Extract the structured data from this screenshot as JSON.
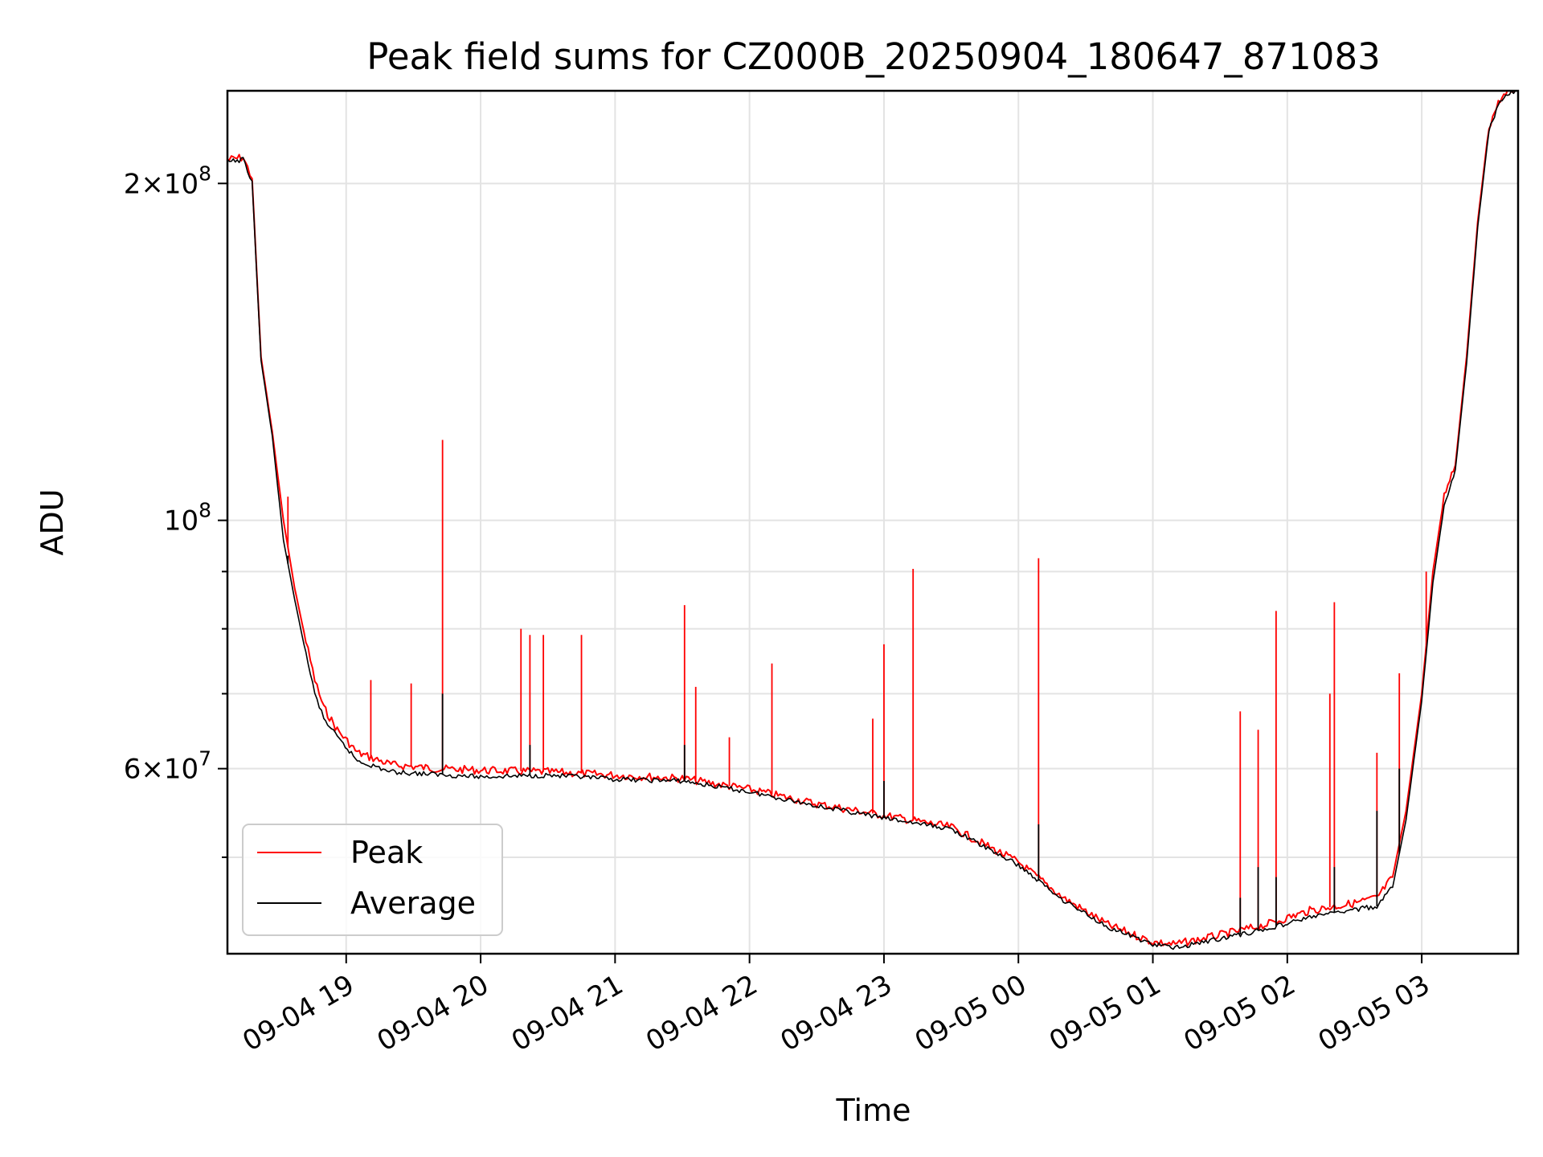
{
  "chart_data": {
    "type": "line",
    "title": "Peak field sums for CZ000B_20250904_180647_871083",
    "xlabel": "Time",
    "ylabel": "ADU",
    "yscale": "log",
    "grid": true,
    "legend_position": "lower-left",
    "xlim": [
      "09-04 18:07",
      "09-05 03:43"
    ],
    "ylim": [
      41000000,
      242000000
    ],
    "x_ticks": [
      {
        "label": "09-04 19",
        "value": "09-04 19:00"
      },
      {
        "label": "09-04 20",
        "value": "09-04 20:00"
      },
      {
        "label": "09-04 21",
        "value": "09-04 21:00"
      },
      {
        "label": "09-04 22",
        "value": "09-04 22:00"
      },
      {
        "label": "09-04 23",
        "value": "09-04 23:00"
      },
      {
        "label": "09-05 00",
        "value": "09-05 00:00"
      },
      {
        "label": "09-05 01",
        "value": "09-05 01:00"
      },
      {
        "label": "09-05 02",
        "value": "09-05 02:00"
      },
      {
        "label": "09-05 03",
        "value": "09-05 03:00"
      }
    ],
    "y_major_ticks": [
      {
        "value": 60000000,
        "base": "6",
        "mul": "×",
        "pow_base": "10",
        "exp": "7"
      },
      {
        "value": 100000000,
        "base": "",
        "mul": "",
        "pow_base": "10",
        "exp": "8"
      },
      {
        "value": 200000000,
        "base": "2",
        "mul": "×",
        "pow_base": "10",
        "exp": "8"
      }
    ],
    "y_minor_ticks": [
      50000000,
      70000000,
      80000000,
      90000000
    ],
    "series": [
      {
        "name": "Peak",
        "color": "#ff0000",
        "x": [
          "09-04 18:07",
          "09-04 18:14",
          "09-04 18:18",
          "09-04 18:22",
          "09-04 18:27",
          "09-04 18:32",
          "09-04 18:37",
          "09-04 18:42",
          "09-04 18:46",
          "09-04 18:50",
          "09-04 18:56",
          "09-04 19:05",
          "09-04 19:20",
          "09-04 19:40",
          "09-04 20:00",
          "09-04 20:30",
          "09-04 21:00",
          "09-04 21:30",
          "09-04 22:00",
          "09-04 22:30",
          "09-04 23:00",
          "09-04 23:30",
          "09-05 00:00",
          "09-05 00:20",
          "09-05 00:40",
          "09-05 01:00",
          "09-05 01:10",
          "09-05 01:30",
          "09-05 01:50",
          "09-05 02:10",
          "09-05 02:30",
          "09-05 02:40",
          "09-05 02:47",
          "09-05 02:53",
          "09-05 03:00",
          "09-05 03:05",
          "09-05 03:10",
          "09-05 03:15",
          "09-05 03:20",
          "09-05 03:25",
          "09-05 03:30",
          "09-05 03:35",
          "09-05 03:40",
          "09-05 03:43"
        ],
        "values": [
          210000000,
          211000000,
          202000000,
          140000000,
          120000000,
          100000000,
          87000000,
          78000000,
          72000000,
          68000000,
          65000000,
          62000000,
          60500000,
          60000000,
          59800000,
          59600000,
          59200000,
          58800000,
          57500000,
          55800000,
          54500000,
          53200000,
          49500000,
          46000000,
          43500000,
          42000000,
          41800000,
          42600000,
          43500000,
          44800000,
          45500000,
          46000000,
          48000000,
          55000000,
          70000000,
          90000000,
          105000000,
          112000000,
          140000000,
          185000000,
          225000000,
          238000000,
          242000000,
          242000000
        ],
        "spikes": [
          {
            "x": "09-04 18:34",
            "y": 105000000
          },
          {
            "x": "09-04 19:11",
            "y": 72000000
          },
          {
            "x": "09-04 19:29",
            "y": 71500000
          },
          {
            "x": "09-04 19:43",
            "y": 118000000
          },
          {
            "x": "09-04 20:18",
            "y": 80000000
          },
          {
            "x": "09-04 20:22",
            "y": 79000000
          },
          {
            "x": "09-04 20:28",
            "y": 79000000
          },
          {
            "x": "09-04 20:45",
            "y": 79000000
          },
          {
            "x": "09-04 21:31",
            "y": 84000000
          },
          {
            "x": "09-04 21:36",
            "y": 71000000
          },
          {
            "x": "09-04 21:51",
            "y": 64000000
          },
          {
            "x": "09-04 22:10",
            "y": 74500000
          },
          {
            "x": "09-04 22:55",
            "y": 66500000
          },
          {
            "x": "09-04 23:00",
            "y": 77500000
          },
          {
            "x": "09-04 23:13",
            "y": 90500000
          },
          {
            "x": "09-05 00:09",
            "y": 92500000
          },
          {
            "x": "09-05 01:39",
            "y": 67500000
          },
          {
            "x": "09-05 01:47",
            "y": 65000000
          },
          {
            "x": "09-05 01:55",
            "y": 83000000
          },
          {
            "x": "09-05 02:19",
            "y": 70000000
          },
          {
            "x": "09-05 02:21",
            "y": 84500000
          },
          {
            "x": "09-05 02:40",
            "y": 62000000
          },
          {
            "x": "09-05 02:50",
            "y": 73000000
          },
          {
            "x": "09-05 03:02",
            "y": 90000000
          }
        ]
      },
      {
        "name": "Average",
        "color": "#000000",
        "x": [
          "09-04 18:07",
          "09-04 18:14",
          "09-04 18:18",
          "09-04 18:22",
          "09-04 18:27",
          "09-04 18:32",
          "09-04 18:37",
          "09-04 18:42",
          "09-04 18:46",
          "09-04 18:50",
          "09-04 18:56",
          "09-04 19:05",
          "09-04 19:20",
          "09-04 19:40",
          "09-04 20:00",
          "09-04 20:30",
          "09-04 21:00",
          "09-04 21:30",
          "09-04 22:00",
          "09-04 22:30",
          "09-04 23:00",
          "09-04 23:30",
          "09-05 00:00",
          "09-05 00:20",
          "09-05 00:40",
          "09-05 01:00",
          "09-05 01:10",
          "09-05 01:30",
          "09-05 01:50",
          "09-05 02:10",
          "09-05 02:30",
          "09-05 02:40",
          "09-05 02:47",
          "09-05 02:53",
          "09-05 03:00",
          "09-05 03:05",
          "09-05 03:10",
          "09-05 03:15",
          "09-05 03:20",
          "09-05 03:25",
          "09-05 03:30",
          "09-05 03:35",
          "09-05 03:40",
          "09-05 03:43"
        ],
        "values": [
          209000000,
          210000000,
          201000000,
          139000000,
          119000000,
          96000000,
          85000000,
          76000000,
          70000000,
          66500000,
          64000000,
          61000000,
          59600000,
          59300000,
          59000000,
          59200000,
          58700000,
          58500000,
          57200000,
          55600000,
          54200000,
          53000000,
          49200000,
          45800000,
          43300000,
          41800000,
          41500000,
          42300000,
          43100000,
          44200000,
          44900000,
          45200000,
          47000000,
          54000000,
          69000000,
          88000000,
          103000000,
          111000000,
          138000000,
          183000000,
          223000000,
          237000000,
          241500000,
          242000000
        ],
        "spikes": [
          {
            "x": "09-04 18:34",
            "y": 93000000
          },
          {
            "x": "09-04 19:43",
            "y": 70000000
          },
          {
            "x": "09-04 20:22",
            "y": 63000000
          },
          {
            "x": "09-04 21:31",
            "y": 63000000
          },
          {
            "x": "09-04 23:00",
            "y": 58500000
          },
          {
            "x": "09-05 00:09",
            "y": 53500000
          },
          {
            "x": "09-05 01:39",
            "y": 46000000
          },
          {
            "x": "09-05 01:47",
            "y": 49000000
          },
          {
            "x": "09-05 01:55",
            "y": 48000000
          },
          {
            "x": "09-05 02:21",
            "y": 49000000
          },
          {
            "x": "09-05 02:40",
            "y": 55000000
          },
          {
            "x": "09-05 02:50",
            "y": 60000000
          }
        ]
      }
    ]
  }
}
